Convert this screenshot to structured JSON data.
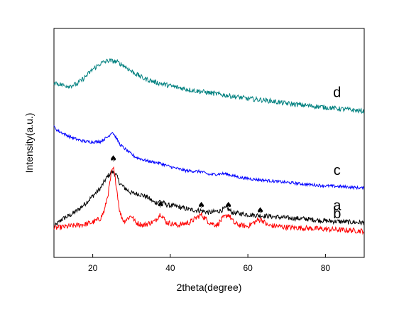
{
  "chart_data": {
    "type": "line",
    "title": "",
    "xlabel": "2theta(degree)",
    "ylabel": "Intensity(a.u.)",
    "xlim": [
      10,
      90
    ],
    "x_ticks": [
      20,
      40,
      60,
      80
    ],
    "y_tick_labels": false,
    "grid": false,
    "legend": "none",
    "marker_symbol": "♠",
    "series": [
      {
        "name": "a",
        "color": "#000000",
        "noise": 0.5,
        "points": [
          [
            10,
            0.1
          ],
          [
            11,
            0.5
          ],
          [
            12,
            0.9
          ],
          [
            14,
            1.3
          ],
          [
            16,
            1.8
          ],
          [
            18,
            2.5
          ],
          [
            20,
            3.3
          ],
          [
            22,
            4.1
          ],
          [
            23,
            4.8
          ],
          [
            24,
            5.4
          ],
          [
            25,
            5.8
          ],
          [
            26,
            5.5
          ],
          [
            27,
            4.6
          ],
          [
            28,
            4.2
          ],
          [
            30,
            3.6
          ],
          [
            32,
            3.5
          ],
          [
            34,
            3.2
          ],
          [
            36,
            2.6
          ],
          [
            37.5,
            2.8
          ],
          [
            39,
            2.4
          ],
          [
            42,
            2.2
          ],
          [
            45,
            1.9
          ],
          [
            48,
            1.8
          ],
          [
            50,
            1.6
          ],
          [
            53,
            1.8
          ],
          [
            54.5,
            2.1
          ],
          [
            56,
            1.6
          ],
          [
            60,
            1.4
          ],
          [
            63,
            1.3
          ],
          [
            66,
            1.2
          ],
          [
            70,
            1.05
          ],
          [
            75,
            0.95
          ],
          [
            80,
            0.75
          ],
          [
            85,
            0.65
          ],
          [
            90,
            0.55
          ]
        ]
      },
      {
        "name": "b",
        "color": "#ff0000",
        "noise": 0.55,
        "points": [
          [
            10,
            0.0
          ],
          [
            12,
            0.1
          ],
          [
            14,
            0.2
          ],
          [
            16,
            0.3
          ],
          [
            18,
            0.4
          ],
          [
            20,
            0.6
          ],
          [
            22,
            1.0
          ],
          [
            23,
            1.8
          ],
          [
            24,
            3.6
          ],
          [
            24.8,
            5.6
          ],
          [
            25.3,
            6.2
          ],
          [
            26,
            4.6
          ],
          [
            27,
            1.6
          ],
          [
            28,
            0.7
          ],
          [
            30,
            1.3
          ],
          [
            31,
            0.6
          ],
          [
            33,
            0.3
          ],
          [
            36,
            0.7
          ],
          [
            37.5,
            1.5
          ],
          [
            39,
            0.6
          ],
          [
            42,
            0.3
          ],
          [
            45,
            0.6
          ],
          [
            48,
            1.4
          ],
          [
            50,
            0.6
          ],
          [
            52,
            0.3
          ],
          [
            53.5,
            1.0
          ],
          [
            55,
            1.4
          ],
          [
            56.5,
            0.5
          ],
          [
            58,
            0.3
          ],
          [
            60,
            0.2
          ],
          [
            62.5,
            0.8
          ],
          [
            63.5,
            0.9
          ],
          [
            65,
            0.3
          ],
          [
            70,
            0.1
          ],
          [
            75,
            0.0
          ],
          [
            80,
            -0.1
          ],
          [
            85,
            -0.2
          ],
          [
            90,
            -0.3
          ]
        ]
      },
      {
        "name": "c",
        "color": "#0000ff",
        "noise": 0.3,
        "points": [
          [
            10,
            10.4
          ],
          [
            11,
            10.0
          ],
          [
            12,
            9.8
          ],
          [
            14,
            9.4
          ],
          [
            16,
            9.1
          ],
          [
            18,
            8.9
          ],
          [
            20,
            8.85
          ],
          [
            22,
            8.9
          ],
          [
            24,
            9.4
          ],
          [
            25,
            9.9
          ],
          [
            26,
            9.3
          ],
          [
            27,
            8.6
          ],
          [
            29,
            7.9
          ],
          [
            31,
            7.3
          ],
          [
            34,
            6.9
          ],
          [
            37,
            6.7
          ],
          [
            40,
            6.3
          ],
          [
            44,
            5.9
          ],
          [
            48,
            5.8
          ],
          [
            50,
            5.5
          ],
          [
            54,
            5.6
          ],
          [
            55,
            5.5
          ],
          [
            58,
            5.2
          ],
          [
            62,
            5.0
          ],
          [
            66,
            4.85
          ],
          [
            70,
            4.7
          ],
          [
            75,
            4.5
          ],
          [
            80,
            4.35
          ],
          [
            85,
            4.25
          ],
          [
            90,
            4.1
          ]
        ]
      },
      {
        "name": "d",
        "color": "#00807f",
        "noise": 0.5,
        "points": [
          [
            10,
            15.0
          ],
          [
            12,
            14.7
          ],
          [
            14,
            14.6
          ],
          [
            16,
            14.8
          ],
          [
            18,
            15.5
          ],
          [
            20,
            16.3
          ],
          [
            22,
            16.9
          ],
          [
            24,
            17.2
          ],
          [
            26,
            17.1
          ],
          [
            28,
            16.7
          ],
          [
            30,
            16.1
          ],
          [
            33,
            15.4
          ],
          [
            36,
            15.0
          ],
          [
            40,
            14.6
          ],
          [
            45,
            14.2
          ],
          [
            50,
            13.9
          ],
          [
            55,
            13.6
          ],
          [
            60,
            13.3
          ],
          [
            65,
            13.1
          ],
          [
            70,
            12.8
          ],
          [
            75,
            12.6
          ],
          [
            80,
            12.4
          ],
          [
            85,
            12.2
          ],
          [
            90,
            12.0
          ]
        ]
      }
    ],
    "peak_markers": [
      {
        "x": 25.3,
        "series": "b"
      },
      {
        "x": 37.5,
        "series": "b"
      },
      {
        "x": 48,
        "series": "b"
      },
      {
        "x": 55,
        "series": "b"
      },
      {
        "x": 63.2,
        "series": "b"
      }
    ],
    "curve_labels": [
      {
        "text": "d",
        "series": "d"
      },
      {
        "text": "c",
        "series": "c"
      },
      {
        "text": "b",
        "series": "b"
      },
      {
        "text": "a",
        "series": "a"
      }
    ]
  }
}
